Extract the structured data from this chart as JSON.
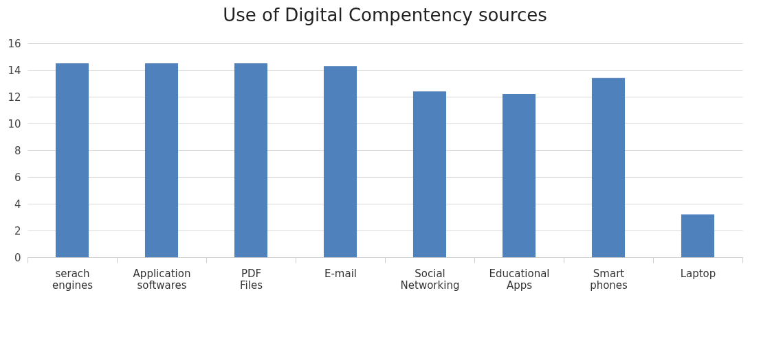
{
  "chart_data": {
    "type": "bar",
    "title": "Use of Digital Compentency sources",
    "categories": [
      "serach engines",
      "Application softwares",
      "PDF Files",
      "E-mail",
      "Social Networking",
      "Educational Apps",
      "Smart phones",
      "Laptop"
    ],
    "values": [
      14.5,
      14.5,
      14.5,
      14.3,
      12.4,
      12.2,
      13.4,
      3.2
    ],
    "color": "#4f81bd",
    "ylim": [
      0,
      16
    ],
    "yticks": [
      0,
      2,
      4,
      6,
      8,
      10,
      12,
      14,
      16
    ],
    "grid": "y"
  }
}
